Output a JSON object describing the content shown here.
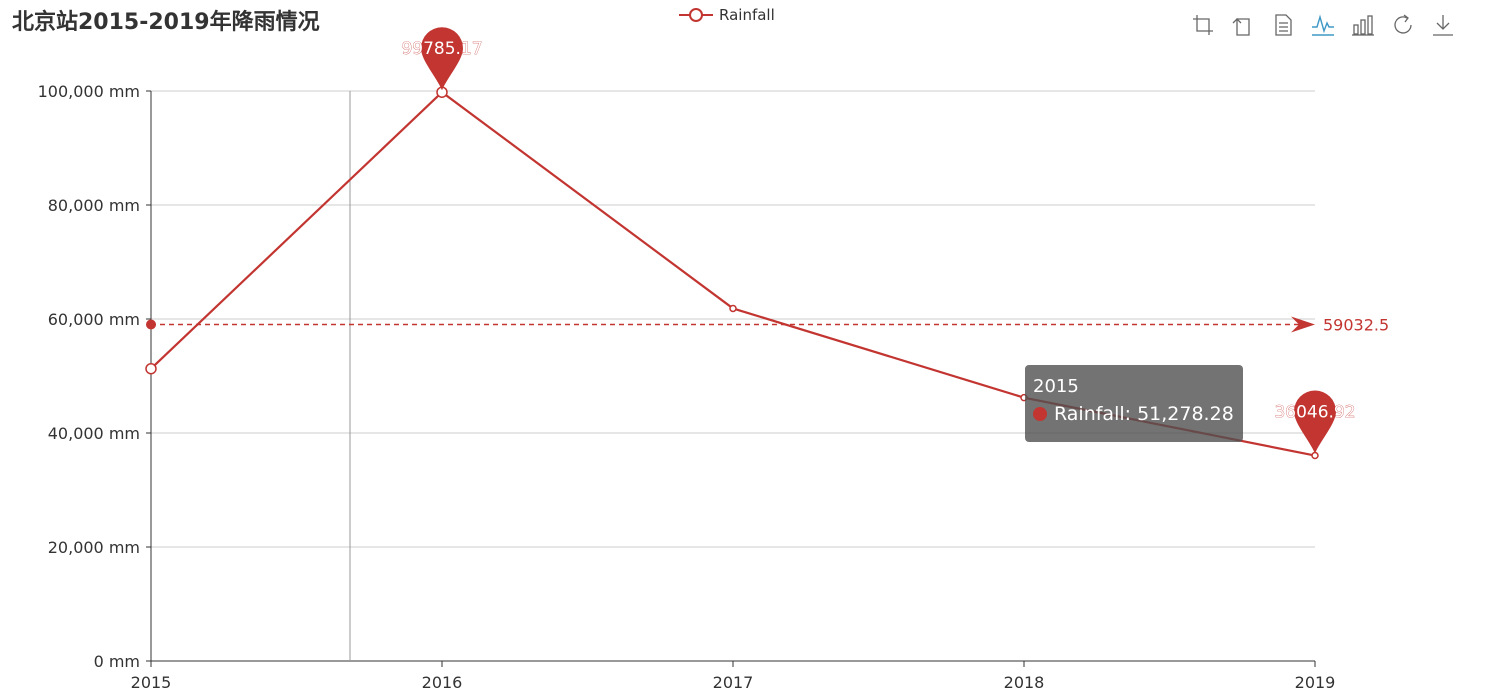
{
  "title": "北京站2015-2019年降雨情况",
  "legend": {
    "label": "Rainfall",
    "color": "#c23531"
  },
  "toolbox": {
    "icons": [
      "zoom-icon",
      "zoom-reset-icon",
      "data-view-icon",
      "line-chart-icon",
      "bar-chart-icon",
      "restore-icon",
      "download-icon"
    ]
  },
  "tooltip": {
    "category": "2015",
    "series": "Rainfall",
    "value_text": "Rainfall: 51,278.28"
  },
  "chart_data": {
    "type": "line",
    "title": "北京站2015-2019年降雨情况",
    "categories": [
      "2015",
      "2016",
      "2017",
      "2018",
      "2019"
    ],
    "series": [
      {
        "name": "Rainfall",
        "values": [
          51278.28,
          99785.17,
          61852.0,
          46200.0,
          36046.92
        ],
        "color": "#c23531"
      }
    ],
    "ylim": [
      0,
      100000
    ],
    "yticks": [
      0,
      20000,
      40000,
      60000,
      80000,
      100000
    ],
    "ytick_labels": [
      "0 mm",
      "20,000 mm",
      "40,000 mm",
      "60,000 mm",
      "80,000 mm",
      "100,000 mm"
    ],
    "mark_points": [
      {
        "label": "99785.17",
        "category": "2016",
        "value": 99785.17
      },
      {
        "label": "36046.92",
        "category": "2019",
        "value": 36046.92
      }
    ],
    "mark_line": {
      "label": "59032.5",
      "value": 59032.5
    },
    "grid": true,
    "legend_position": "top-center"
  }
}
